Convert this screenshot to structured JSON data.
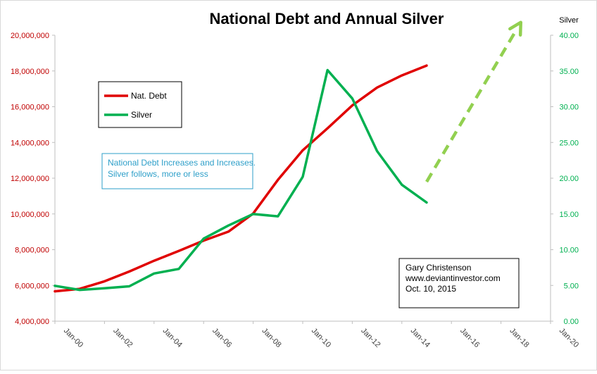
{
  "chart_data": {
    "type": "line",
    "title": "National Debt  and Annual Silver",
    "y2_label": "Silver",
    "x_ticks": [
      "Jan-00",
      "Jan-02",
      "Jan-04",
      "Jan-06",
      "Jan-08",
      "Jan-10",
      "Jan-12",
      "Jan-14",
      "Jan-16",
      "Jan-18",
      "Jan-20"
    ],
    "x_domain": [
      2000,
      2020
    ],
    "y_left": {
      "range": [
        4000000,
        20000000
      ],
      "ticks": [
        {
          "value": 4000000,
          "label": "4,000,000"
        },
        {
          "value": 6000000,
          "label": "6,000,000"
        },
        {
          "value": 8000000,
          "label": "8,000,000"
        },
        {
          "value": 10000000,
          "label": "10,000,000"
        },
        {
          "value": 12000000,
          "label": "12,000,000"
        },
        {
          "value": 14000000,
          "label": "14,000,000"
        },
        {
          "value": 16000000,
          "label": "16,000,000"
        },
        {
          "value": 18000000,
          "label": "18,000,000"
        },
        {
          "value": 20000000,
          "label": "20,000,000"
        }
      ]
    },
    "y_right": {
      "range": [
        0,
        40
      ],
      "ticks": [
        {
          "value": 0,
          "label": "0.00"
        },
        {
          "value": 5,
          "label": "5.00"
        },
        {
          "value": 10,
          "label": "10.00"
        },
        {
          "value": 15,
          "label": "15.00"
        },
        {
          "value": 20,
          "label": "20.00"
        },
        {
          "value": 25,
          "label": "25.00"
        },
        {
          "value": 30,
          "label": "30.00"
        },
        {
          "value": 35,
          "label": "35.00"
        },
        {
          "value": 40,
          "label": "40.00"
        }
      ]
    },
    "grid": false,
    "legend_position": "upper-left",
    "series": [
      {
        "name": "Nat. Debt",
        "axis": "left",
        "color": "#e00000",
        "x": [
          2000,
          2001,
          2002,
          2003,
          2004,
          2005,
          2006,
          2007,
          2008,
          2009,
          2010,
          2011,
          2012,
          2013,
          2014,
          2015
        ],
        "y": [
          5670000,
          5810000,
          6230000,
          6780000,
          7380000,
          7930000,
          8510000,
          9010000,
          10020000,
          11910000,
          13560000,
          14790000,
          16070000,
          17070000,
          17750000,
          18300000
        ]
      },
      {
        "name": "Silver",
        "axis": "right",
        "color": "#00b050",
        "x": [
          2000,
          2001,
          2002,
          2003,
          2004,
          2005,
          2006,
          2007,
          2008,
          2009,
          2010,
          2011,
          2012,
          2013,
          2014,
          2015
        ],
        "y": [
          4.95,
          4.37,
          4.6,
          4.88,
          6.67,
          7.31,
          11.55,
          13.38,
          14.99,
          14.67,
          20.19,
          35.12,
          31.15,
          23.79,
          19.08,
          16.6
        ]
      }
    ],
    "projection": {
      "color": "#92d050",
      "style": "dashed-arrow",
      "from": {
        "x": 2015,
        "y": 19.5
      },
      "to": {
        "x": 2018.8,
        "y": 41.8
      }
    },
    "annotations": [
      {
        "id": "note",
        "color": "#2e9fc9",
        "lines": [
          "National Debt Increases and Increases.",
          "Silver follows, more or less"
        ]
      },
      {
        "id": "credit",
        "color": "#000000",
        "lines": [
          "Gary Christenson",
          "www.deviantinvestor.com",
          "Oct. 10, 2015"
        ]
      }
    ]
  }
}
